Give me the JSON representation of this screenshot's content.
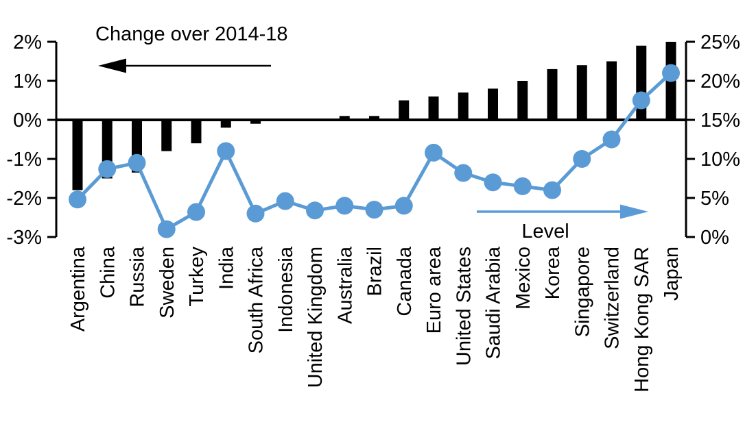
{
  "chart_data": {
    "type": "combo",
    "title": "",
    "categories": [
      "Argentina",
      "China",
      "Russia",
      "Sweden",
      "Turkey",
      "India",
      "South Africa",
      "Indonesia",
      "United Kingdom",
      "Australia",
      "Brazil",
      "Canada",
      "Euro area",
      "United States",
      "Saudi Arabia",
      "Mexico",
      "Korea",
      "Singapore",
      "Switzerland",
      "Hong Kong SAR",
      "Japan"
    ],
    "series": [
      {
        "name": "Change over 2014-18",
        "type": "bar",
        "axis": "left",
        "unit": "%",
        "values": [
          -1.8,
          -1.5,
          -1.35,
          -0.8,
          -0.6,
          -0.2,
          -0.1,
          0,
          0,
          0.1,
          0.1,
          0.5,
          0.6,
          0.7,
          0.8,
          1.0,
          1.3,
          1.4,
          1.5,
          1.9,
          2.0
        ]
      },
      {
        "name": "Level",
        "type": "line",
        "axis": "right",
        "unit": "%",
        "values": [
          4.8,
          8.7,
          9.5,
          1.0,
          3.2,
          11.0,
          3.0,
          4.6,
          3.4,
          4.0,
          3.5,
          4.0,
          10.8,
          8.2,
          7.0,
          6.5,
          6.0,
          10.0,
          12.5,
          17.5,
          21.0
        ]
      }
    ],
    "left_axis": {
      "range": [
        -3,
        2
      ],
      "tick_values": [
        2,
        1,
        0,
        -1,
        -2,
        -3
      ],
      "tick_labels": [
        "2%",
        "1%",
        "0%",
        "-1%",
        "-2%",
        "-3%"
      ]
    },
    "right_axis": {
      "range": [
        0,
        25
      ],
      "tick_values": [
        25,
        20,
        15,
        10,
        5,
        0
      ],
      "tick_labels": [
        "25%",
        "20%",
        "15%",
        "10%",
        "5%",
        "0%"
      ]
    },
    "annotations": {
      "bar_series_label": "Change over 2014-18",
      "line_series_label": "Level",
      "bar_arrow_direction": "left",
      "line_arrow_direction": "right"
    },
    "layout": {
      "grid": false,
      "legend_position": "in-plot annotations"
    },
    "colors": {
      "bar": "#000000",
      "line": "#5B9BD5",
      "text": "#000000",
      "background": "#ffffff"
    }
  }
}
